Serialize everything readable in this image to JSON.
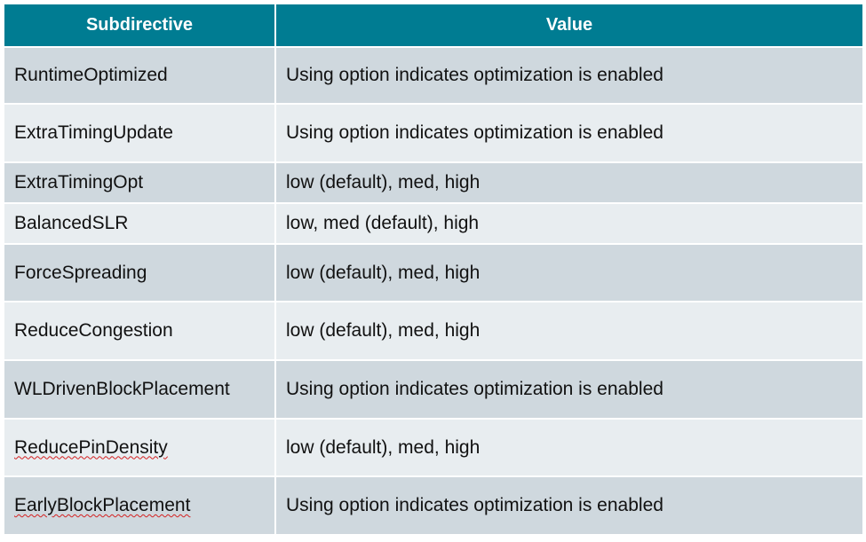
{
  "table": {
    "headers": [
      "Subdirective",
      "Value"
    ],
    "rows": [
      {
        "subdirective": "RuntimeOptimized",
        "value": "Using option indicates optimization is enabled"
      },
      {
        "subdirective": "ExtraTimingUpdate",
        "value": "Using option indicates optimization is enabled"
      },
      {
        "subdirective": "ExtraTimingOpt",
        "value": "low (default), med, high"
      },
      {
        "subdirective": "BalancedSLR",
        "value": "low, med (default), high"
      },
      {
        "subdirective": "ForceSpreading",
        "value": "low (default), med, high"
      },
      {
        "subdirective": "ReduceCongestion",
        "value": "low (default), med, high"
      },
      {
        "subdirective": "WLDrivenBlockPlacement",
        "value": "Using option indicates optimization is enabled"
      },
      {
        "subdirective": "ReducePinDensity",
        "value": "low (default), med, high"
      },
      {
        "subdirective": "EarlyBlockPlacement",
        "value": "Using option indicates optimization is enabled"
      }
    ]
  },
  "colors": {
    "header_bg": "#007c92",
    "row_odd": "#cfd8de",
    "row_even": "#e8edf0",
    "spellcheck_underline": "#d42020"
  }
}
